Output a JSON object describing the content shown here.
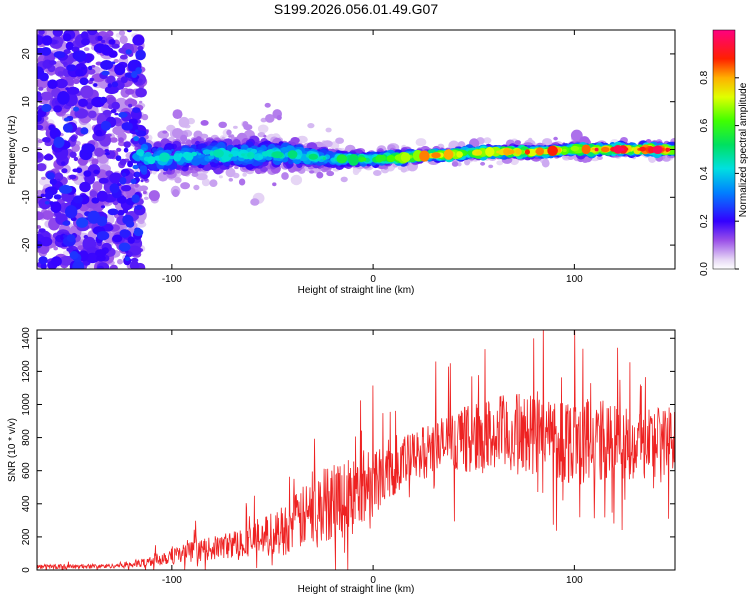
{
  "title": "S199.2026.056.01.49.G07",
  "colors": {
    "snr_line": "#ee2222",
    "frame": "#000000"
  },
  "chart_data": [
    {
      "id": "spectrogram",
      "type": "heatmap",
      "title": "S199.2026.056.01.49.G07",
      "xlabel": "Height of straight line (km)",
      "ylabel": "Frequency (Hz)",
      "xlim": [
        -167,
        150
      ],
      "ylim": [
        -25,
        25
      ],
      "xticks": [
        -100,
        0,
        100
      ],
      "yticks": [
        -20,
        -10,
        0,
        10,
        20
      ],
      "xtick_labels": [
        "-100",
        "0",
        "100"
      ],
      "ytick_labels": [
        "-20",
        "-10",
        "0",
        "10",
        "20"
      ],
      "colorbar": {
        "label": "Normalized spectral amplitude",
        "range": [
          0,
          1
        ],
        "ticks": [
          0.0,
          0.2,
          0.4,
          0.6,
          0.8
        ],
        "tick_labels": [
          "0.0",
          "0.2",
          "0.4",
          "0.6",
          "0.8"
        ],
        "colormap": "rainbow: white/lavender (0) to purple, blue, cyan, green, yellow, red, magenta (1)"
      },
      "description_points": {
        "height_km": [
          -160,
          -120,
          -110,
          -80,
          -40,
          -20,
          0,
          20,
          40,
          60,
          80,
          100,
          120,
          150
        ],
        "ridge_freq_hz": [
          0,
          0,
          -2,
          -1,
          -1,
          -2,
          -2,
          -1.5,
          -1,
          -0.5,
          -0.5,
          0,
          0,
          0
        ],
        "ridge_amplitude": [
          0.3,
          0.35,
          0.45,
          0.45,
          0.5,
          0.5,
          0.6,
          0.8,
          0.75,
          0.75,
          0.85,
          0.85,
          0.9,
          0.95
        ],
        "spread_hz": [
          25,
          25,
          6,
          6,
          5,
          2.5,
          2,
          1.5,
          1.5,
          1.5,
          1.5,
          1.5,
          1.5,
          1.5
        ]
      }
    },
    {
      "id": "snr",
      "type": "line",
      "xlabel": "Height of straight line (km)",
      "ylabel": "SNR (10 * v/v)",
      "xlim": [
        -167,
        150
      ],
      "ylim": [
        0,
        1450
      ],
      "xticks": [
        -100,
        0,
        100
      ],
      "yticks": [
        0,
        200,
        400,
        600,
        800,
        1000,
        1200,
        1400
      ],
      "xtick_labels": [
        "-100",
        "0",
        "100"
      ],
      "ytick_labels": [
        "0",
        "200",
        "400",
        "600",
        "800",
        "1000",
        "1200",
        "1400"
      ],
      "series": [
        {
          "name": "SNR",
          "x": [
            -167,
            -150,
            -130,
            -115,
            -100,
            -80,
            -60,
            -45,
            -30,
            -20,
            -10,
            0,
            10,
            20,
            30,
            40,
            50,
            60,
            70,
            80,
            90,
            100,
            110,
            120,
            130,
            140,
            150
          ],
          "y": [
            20,
            20,
            25,
            40,
            90,
            130,
            180,
            240,
            350,
            430,
            450,
            550,
            620,
            680,
            740,
            780,
            800,
            810,
            820,
            820,
            800,
            790,
            780,
            760,
            770,
            780,
            790
          ],
          "noise_amplitude": [
            10,
            10,
            10,
            20,
            40,
            50,
            70,
            110,
            150,
            180,
            180,
            160,
            130,
            110,
            120,
            130,
            150,
            170,
            180,
            180,
            190,
            200,
            190,
            180,
            170,
            160,
            150
          ]
        }
      ]
    }
  ]
}
